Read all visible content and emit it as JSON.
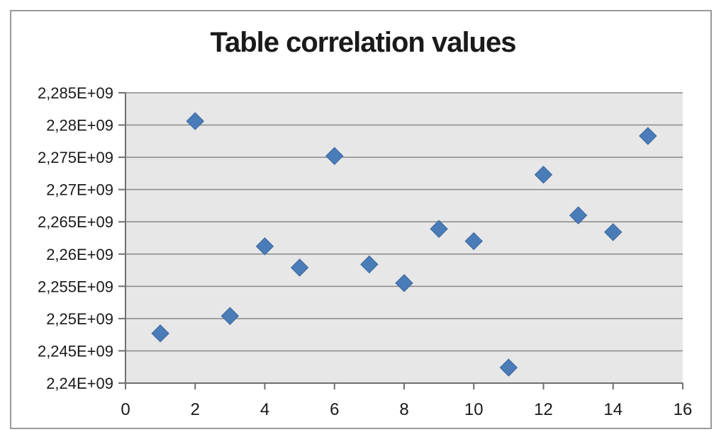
{
  "chart": {
    "title": "Table correlation values"
  },
  "chart_data": {
    "type": "scatter",
    "title": "Table correlation values",
    "xlabel": "",
    "ylabel": "",
    "legend": false,
    "grid": true,
    "marker": "diamond",
    "x": [
      1,
      2,
      3,
      4,
      5,
      6,
      7,
      8,
      9,
      10,
      11,
      12,
      13,
      14,
      15
    ],
    "y": [
      2247700000,
      2280600000,
      2250400000,
      2261200000,
      2257900000,
      2275200000,
      2258400000,
      2255500000,
      2263900000,
      2262000000,
      2242400000,
      2272300000,
      2266000000,
      2263400000,
      2278300000
    ],
    "xlim": [
      0,
      16
    ],
    "ylim": [
      2240000000,
      2285000000
    ],
    "x_ticks": [
      0,
      2,
      4,
      6,
      8,
      10,
      12,
      14,
      16
    ],
    "x_tick_labels": [
      "0",
      "2",
      "4",
      "6",
      "8",
      "10",
      "12",
      "14",
      "16"
    ],
    "y_ticks": [
      2240000000,
      2245000000,
      2250000000,
      2255000000,
      2260000000,
      2265000000,
      2270000000,
      2275000000,
      2280000000,
      2285000000
    ],
    "y_tick_labels": [
      "2,24E+09",
      "2,245E+09",
      "2,25E+09",
      "2,255E+09",
      "2,26E+09",
      "2,265E+09",
      "2,27E+09",
      "2,275E+09",
      "2,28E+09",
      "2,285E+09"
    ],
    "colors": {
      "marker_fill": "#4a7cb8",
      "marker_edge": "#3a669e",
      "plot_background": "#e7e7e7",
      "gridline": "#898989",
      "axis": "#6f6f6f",
      "tick_label": "#1a1a1a",
      "title": "#1a1a1a",
      "frame_border": "#9a9a9a"
    }
  }
}
